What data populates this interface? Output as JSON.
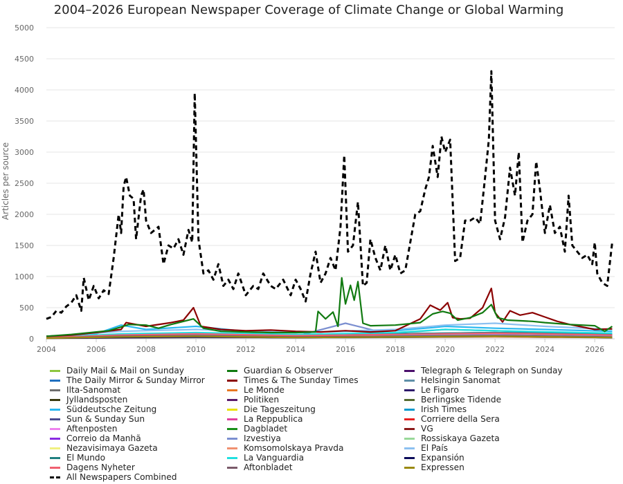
{
  "chart_data": {
    "type": "line",
    "title": "2004–2026 European Newspaper Coverage of Climate Change or Global Warming",
    "ylabel": "Articles per source",
    "xlabel": "",
    "xlim": [
      2004,
      2026.8
    ],
    "ylim": [
      0,
      5000
    ],
    "x_ticks": [
      "2004",
      "2006",
      "2008",
      "2010",
      "2012",
      "2014",
      "2016",
      "2018",
      "2020",
      "2022",
      "2024",
      "2026"
    ],
    "y_ticks": [
      "0",
      "500",
      "1000",
      "1500",
      "2000",
      "2500",
      "3000",
      "3500",
      "4000",
      "4500",
      "5000"
    ],
    "grid": "horizontal",
    "legend_position": "bottom",
    "series": [
      {
        "name": "Daily Mail & Mail on Sunday",
        "color": "#8dc63f",
        "dashed": false,
        "x": [
          2004,
          2006,
          2007,
          2008,
          2010,
          2012,
          2014,
          2016,
          2018,
          2020,
          2022,
          2024,
          2026.7
        ],
        "y": [
          10,
          30,
          60,
          50,
          70,
          40,
          40,
          50,
          60,
          80,
          70,
          60,
          50
        ]
      },
      {
        "name": "Guardian & Observer",
        "color": "#107a10",
        "dashed": false,
        "x": [
          2004,
          2005,
          2006,
          2006.5,
          2007,
          2007.3,
          2008,
          2008.5,
          2009,
          2009.9,
          2010.3,
          2011,
          2012,
          2013,
          2014,
          2014.8,
          2014.9,
          2015.2,
          2015.5,
          2015.7,
          2015.85,
          2016.0,
          2016.2,
          2016.35,
          2016.5,
          2016.7,
          2017,
          2018,
          2019,
          2019.5,
          2019.9,
          2020.2,
          2020.5,
          2021,
          2021.5,
          2021.85,
          2022.1,
          2022.5,
          2023,
          2023.5,
          2024,
          2025,
          2026,
          2026.4,
          2026.7
        ],
        "y": [
          40,
          70,
          110,
          130,
          190,
          230,
          220,
          170,
          230,
          320,
          170,
          120,
          110,
          100,
          100,
          110,
          440,
          320,
          430,
          200,
          980,
          560,
          860,
          620,
          920,
          250,
          210,
          220,
          260,
          400,
          440,
          410,
          300,
          340,
          420,
          550,
          340,
          300,
          290,
          280,
          260,
          230,
          210,
          120,
          200
        ]
      },
      {
        "name": "Telegraph & Telegraph on Sunday",
        "color": "#4b0f6b",
        "dashed": false,
        "x": [
          2004,
          2007,
          2010,
          2013,
          2016,
          2019,
          2022,
          2026.7
        ],
        "y": [
          20,
          40,
          50,
          30,
          40,
          50,
          60,
          40
        ]
      },
      {
        "name": "The Daily Mirror & Sunday Mirror",
        "color": "#1f6fbf",
        "dashed": false,
        "x": [
          2004,
          2007,
          2010,
          2013,
          2016,
          2019,
          2022,
          2026.7
        ],
        "y": [
          10,
          30,
          40,
          20,
          30,
          30,
          40,
          30
        ]
      },
      {
        "name": "Times & The Sunday Times",
        "color": "#8b0000",
        "dashed": false,
        "x": [
          2004,
          2005,
          2006,
          2007,
          2007.2,
          2008,
          2009,
          2009.5,
          2009.9,
          2010.2,
          2011,
          2012,
          2013,
          2014,
          2015,
          2016,
          2017,
          2018,
          2019,
          2019.4,
          2019.8,
          2020.1,
          2020.3,
          2020.6,
          2021,
          2021.5,
          2021.85,
          2022.0,
          2022.3,
          2022.6,
          2023,
          2023.5,
          2024,
          2024.5,
          2025,
          2026,
          2026.7
        ],
        "y": [
          40,
          60,
          100,
          150,
          260,
          200,
          260,
          300,
          500,
          200,
          150,
          130,
          140,
          120,
          110,
          130,
          110,
          130,
          320,
          540,
          460,
          580,
          340,
          320,
          330,
          500,
          810,
          420,
          270,
          450,
          380,
          420,
          350,
          280,
          230,
          150,
          160
        ]
      },
      {
        "name": "Helsingin Sanomat",
        "color": "#5f8fa8",
        "dashed": false,
        "x": [
          2004,
          2008,
          2012,
          2016,
          2019,
          2020,
          2022,
          2026.7
        ],
        "y": [
          20,
          60,
          40,
          50,
          120,
          150,
          130,
          70
        ]
      },
      {
        "name": "Ilta-Sanomat",
        "color": "#6e6e6e",
        "dashed": false,
        "x": [
          2004,
          2010,
          2016,
          2022,
          2026.7
        ],
        "y": [
          10,
          20,
          20,
          30,
          20
        ]
      },
      {
        "name": "Le Monde",
        "color": "#e87722",
        "dashed": false,
        "x": [
          2004,
          2007,
          2010,
          2014,
          2018,
          2022,
          2026.7
        ],
        "y": [
          30,
          70,
          90,
          60,
          70,
          90,
          60
        ]
      },
      {
        "name": "Le Figaro",
        "color": "#2e1a6b",
        "dashed": false,
        "x": [
          2004,
          2007,
          2010,
          2014,
          2018,
          2022,
          2026.7
        ],
        "y": [
          20,
          50,
          60,
          40,
          50,
          60,
          40
        ]
      },
      {
        "name": "Jyllandsposten",
        "color": "#3b3b10",
        "dashed": false,
        "x": [
          2004,
          2007,
          2010,
          2014,
          2018,
          2022,
          2026.7
        ],
        "y": [
          20,
          40,
          60,
          30,
          40,
          60,
          30
        ]
      },
      {
        "name": "Politiken",
        "color": "#5a1a6b",
        "dashed": false,
        "x": [
          2004,
          2007,
          2010,
          2014,
          2018,
          2022,
          2026.7
        ],
        "y": [
          20,
          50,
          80,
          40,
          50,
          70,
          40
        ]
      },
      {
        "name": "Berlingske Tidende",
        "color": "#556b2f",
        "dashed": false,
        "x": [
          2004,
          2007,
          2010,
          2014,
          2018,
          2022,
          2026.7
        ],
        "y": [
          10,
          30,
          50,
          20,
          30,
          40,
          20
        ]
      },
      {
        "name": "Süddeutsche Zeitung",
        "color": "#2ab8f0",
        "dashed": false,
        "x": [
          2004,
          2006,
          2007,
          2008,
          2010,
          2012,
          2014,
          2016,
          2018,
          2019.5,
          2020,
          2022,
          2024,
          2026.7
        ],
        "y": [
          40,
          80,
          220,
          150,
          200,
          120,
          100,
          120,
          130,
          180,
          200,
          170,
          150,
          120
        ]
      },
      {
        "name": "Die Tageszeitung",
        "color": "#e8e000",
        "dashed": false,
        "x": [
          2004,
          2007,
          2010,
          2014,
          2018,
          2022,
          2026.7
        ],
        "y": [
          30,
          60,
          80,
          60,
          70,
          80,
          60
        ]
      },
      {
        "name": "Irish Times",
        "color": "#0099cc",
        "dashed": false,
        "x": [
          2004,
          2007,
          2010,
          2014,
          2018,
          2022,
          2026.7
        ],
        "y": [
          30,
          70,
          80,
          60,
          80,
          100,
          70
        ]
      },
      {
        "name": "Sun & Sunday Sun",
        "color": "#4b4b8f",
        "dashed": false,
        "x": [
          2004,
          2007,
          2010,
          2014,
          2018,
          2022,
          2026.7
        ],
        "y": [
          10,
          30,
          30,
          20,
          30,
          40,
          20
        ]
      },
      {
        "name": "La Reppublica",
        "color": "#e040a0",
        "dashed": false,
        "x": [
          2004,
          2007,
          2010,
          2014,
          2018,
          2022,
          2026.7
        ],
        "y": [
          20,
          40,
          60,
          40,
          50,
          70,
          40
        ]
      },
      {
        "name": "Corriere della Sera",
        "color": "#e82020",
        "dashed": false,
        "x": [
          2004,
          2007,
          2010,
          2014,
          2018,
          2022,
          2026.7
        ],
        "y": [
          20,
          40,
          50,
          40,
          50,
          60,
          40
        ]
      },
      {
        "name": "Aftenposten",
        "color": "#ee82ee",
        "dashed": false,
        "x": [
          2004,
          2007,
          2010,
          2014,
          2018,
          2022,
          2026.7
        ],
        "y": [
          20,
          60,
          70,
          50,
          60,
          80,
          50
        ]
      },
      {
        "name": "Dagbladet",
        "color": "#1a8f1a",
        "dashed": false,
        "x": [
          2004,
          2007,
          2010,
          2014,
          2018,
          2022,
          2026.7
        ],
        "y": [
          10,
          30,
          40,
          30,
          30,
          40,
          30
        ]
      },
      {
        "name": "VG",
        "color": "#8b1a1a",
        "dashed": false,
        "x": [
          2004,
          2007,
          2010,
          2014,
          2018,
          2022,
          2026.7
        ],
        "y": [
          20,
          40,
          50,
          30,
          40,
          60,
          40
        ]
      },
      {
        "name": "Correio da Manhã",
        "color": "#8a2be2",
        "dashed": false,
        "x": [
          2004,
          2007,
          2010,
          2014,
          2018,
          2022,
          2026.7
        ],
        "y": [
          10,
          20,
          30,
          20,
          30,
          40,
          30
        ]
      },
      {
        "name": "Izvestiya",
        "color": "#7b8fd0",
        "dashed": false,
        "x": [
          2004,
          2007,
          2010,
          2014,
          2016,
          2018,
          2022,
          2026.7
        ],
        "y": [
          20,
          40,
          60,
          40,
          250,
          50,
          60,
          40
        ]
      },
      {
        "name": "Rossiskaya Gazeta",
        "color": "#98d898",
        "dashed": false,
        "x": [
          2004,
          2007,
          2010,
          2014,
          2018,
          2022,
          2026.7
        ],
        "y": [
          10,
          30,
          40,
          30,
          40,
          50,
          30
        ]
      },
      {
        "name": "Nezavisimaya Gazeta",
        "color": "#f0f080",
        "dashed": false,
        "x": [
          2004,
          2007,
          2010,
          2014,
          2018,
          2022,
          2026.7
        ],
        "y": [
          10,
          30,
          40,
          30,
          30,
          40,
          30
        ]
      },
      {
        "name": "Komsomolskaya Pravda",
        "color": "#f09070",
        "dashed": false,
        "x": [
          2004,
          2007,
          2010,
          2014,
          2018,
          2022,
          2026.7
        ],
        "y": [
          10,
          20,
          30,
          20,
          30,
          30,
          20
        ]
      },
      {
        "name": "El País",
        "color": "#8cc0f0",
        "dashed": false,
        "x": [
          2004,
          2007,
          2010,
          2014,
          2018,
          2020,
          2022,
          2024,
          2026.7
        ],
        "y": [
          30,
          120,
          150,
          100,
          150,
          220,
          250,
          200,
          150
        ]
      },
      {
        "name": "El Mundo",
        "color": "#208080",
        "dashed": false,
        "x": [
          2004,
          2007,
          2010,
          2014,
          2018,
          2022,
          2026.7
        ],
        "y": [
          20,
          70,
          90,
          60,
          80,
          100,
          70
        ]
      },
      {
        "name": "La Vanguardia",
        "color": "#20e0e0",
        "dashed": false,
        "x": [
          2004,
          2007,
          2010,
          2014,
          2018,
          2020,
          2022,
          2026.7
        ],
        "y": [
          20,
          80,
          100,
          70,
          100,
          150,
          130,
          90
        ]
      },
      {
        "name": "Expansión",
        "color": "#0a0a5a",
        "dashed": false,
        "x": [
          2004,
          2007,
          2010,
          2014,
          2018,
          2022,
          2026.7
        ],
        "y": [
          10,
          20,
          30,
          20,
          30,
          40,
          20
        ]
      },
      {
        "name": "Dagens Nyheter",
        "color": "#f06070",
        "dashed": false,
        "x": [
          2004,
          2007,
          2010,
          2014,
          2018,
          2022,
          2026.7
        ],
        "y": [
          20,
          60,
          80,
          50,
          70,
          90,
          60
        ]
      },
      {
        "name": "Aftonbladet",
        "color": "#7a5a6a",
        "dashed": false,
        "x": [
          2004,
          2007,
          2010,
          2014,
          2018,
          2022,
          2026.7
        ],
        "y": [
          10,
          40,
          50,
          30,
          40,
          50,
          30
        ]
      },
      {
        "name": "Expressen",
        "color": "#9a8a10",
        "dashed": false,
        "x": [
          2004,
          2007,
          2010,
          2014,
          2018,
          2022,
          2026.7
        ],
        "y": [
          10,
          30,
          40,
          20,
          30,
          40,
          20
        ]
      },
      {
        "name": "All Newspapers Combined",
        "color": "#000000",
        "dashed": true,
        "x": [
          2004.0,
          2004.2,
          2004.4,
          2004.6,
          2004.8,
          2005.0,
          2005.2,
          2005.4,
          2005.5,
          2005.7,
          2005.9,
          2006.1,
          2006.3,
          2006.5,
          2006.7,
          2006.9,
          2007.0,
          2007.1,
          2007.2,
          2007.35,
          2007.5,
          2007.6,
          2007.8,
          2007.9,
          2008.0,
          2008.2,
          2008.5,
          2008.7,
          2008.9,
          2009.1,
          2009.3,
          2009.5,
          2009.7,
          2009.85,
          2009.95,
          2010.1,
          2010.3,
          2010.5,
          2010.7,
          2010.9,
          2011.1,
          2011.3,
          2011.5,
          2011.7,
          2012.0,
          2012.3,
          2012.5,
          2012.7,
          2013.0,
          2013.2,
          2013.5,
          2013.8,
          2014.0,
          2014.2,
          2014.4,
          2014.6,
          2014.8,
          2015.0,
          2015.2,
          2015.4,
          2015.6,
          2015.8,
          2015.95,
          2016.1,
          2016.3,
          2016.5,
          2016.7,
          2016.85,
          2017.0,
          2017.2,
          2017.4,
          2017.6,
          2017.8,
          2018.0,
          2018.2,
          2018.4,
          2018.6,
          2018.8,
          2019.0,
          2019.2,
          2019.35,
          2019.5,
          2019.7,
          2019.85,
          2020.0,
          2020.2,
          2020.4,
          2020.6,
          2020.8,
          2021.0,
          2021.2,
          2021.4,
          2021.6,
          2021.75,
          2021.85,
          2022.0,
          2022.2,
          2022.4,
          2022.6,
          2022.8,
          2022.95,
          2023.1,
          2023.3,
          2023.5,
          2023.65,
          2023.8,
          2024.0,
          2024.2,
          2024.4,
          2024.6,
          2024.8,
          2024.95,
          2025.1,
          2025.3,
          2025.5,
          2025.7,
          2025.9,
          2026.0,
          2026.1,
          2026.3,
          2026.5,
          2026.7
        ],
        "y": [
          320,
          350,
          450,
          420,
          520,
          580,
          700,
          450,
          980,
          620,
          850,
          650,
          780,
          720,
          1300,
          2000,
          1700,
          2450,
          2600,
          2300,
          2250,
          1600,
          2300,
          2400,
          1900,
          1700,
          1800,
          1200,
          1500,
          1450,
          1600,
          1350,
          1750,
          1550,
          3950,
          1600,
          1050,
          1100,
          950,
          1200,
          850,
          950,
          800,
          1050,
          700,
          850,
          800,
          1050,
          850,
          800,
          950,
          700,
          950,
          800,
          600,
          1050,
          1400,
          900,
          1050,
          1300,
          1100,
          1800,
          2950,
          1400,
          1500,
          2200,
          850,
          900,
          1600,
          1300,
          1100,
          1500,
          1100,
          1350,
          1050,
          1100,
          1550,
          2000,
          2050,
          2400,
          2600,
          3100,
          2600,
          3250,
          3000,
          3200,
          1250,
          1300,
          1900,
          1900,
          1950,
          1850,
          2600,
          3200,
          4300,
          1900,
          1600,
          1950,
          2750,
          2300,
          3000,
          1550,
          1900,
          2000,
          2850,
          2400,
          1700,
          2150,
          1700,
          1800,
          1400,
          2300,
          1500,
          1400,
          1300,
          1350,
          1200,
          1550,
          1050,
          900,
          850,
          1550
        ]
      }
    ]
  }
}
